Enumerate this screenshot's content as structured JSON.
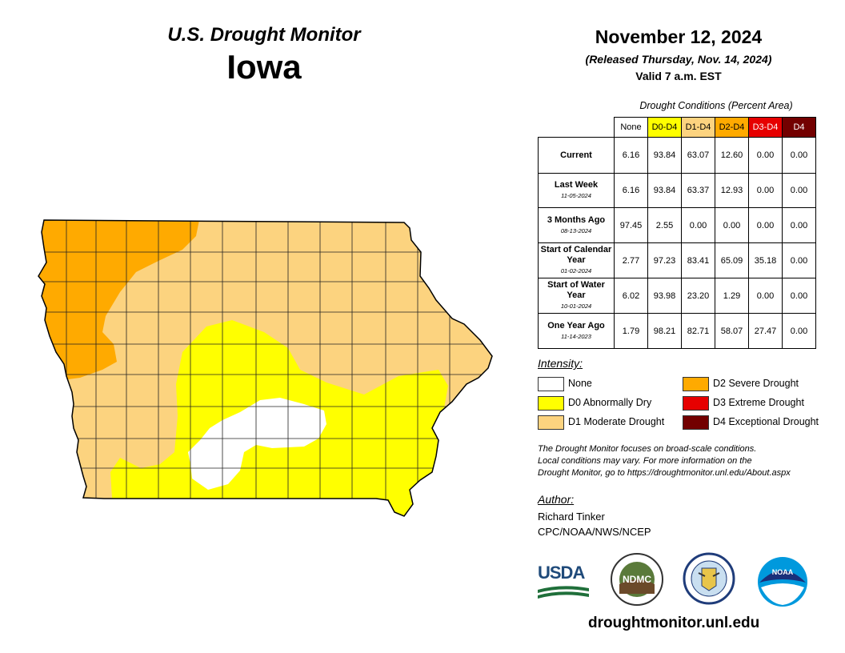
{
  "title": {
    "subtitle": "U.S. Drought Monitor",
    "state": "Iowa",
    "date": "November 12, 2024",
    "released": "(Released Thursday, Nov. 14, 2024)",
    "valid": "Valid 7 a.m. EST"
  },
  "table": {
    "caption": "Drought Conditions (Percent Area)",
    "headers": [
      "None",
      "D0-D4",
      "D1-D4",
      "D2-D4",
      "D3-D4",
      "D4"
    ],
    "header_colors": [
      "#ffffff",
      "#ffff00",
      "#fcd37f",
      "#ffaa00",
      "#e60000",
      "#730000"
    ],
    "header_text_colors": [
      "#000000",
      "#000000",
      "#000000",
      "#000000",
      "#ffffff",
      "#ffffff"
    ],
    "rows": [
      {
        "label": "Current",
        "sublabel": "",
        "values": [
          "6.16",
          "93.84",
          "63.07",
          "12.60",
          "0.00",
          "0.00"
        ]
      },
      {
        "label": "Last Week",
        "sublabel": "11-05-2024",
        "values": [
          "6.16",
          "93.84",
          "63.37",
          "12.93",
          "0.00",
          "0.00"
        ]
      },
      {
        "label": "3 Months Ago",
        "sublabel": "08-13-2024",
        "values": [
          "97.45",
          "2.55",
          "0.00",
          "0.00",
          "0.00",
          "0.00"
        ]
      },
      {
        "label": "Start of Calendar Year",
        "sublabel": "01-02-2024",
        "values": [
          "2.77",
          "97.23",
          "83.41",
          "65.09",
          "35.18",
          "0.00"
        ]
      },
      {
        "label": "Start of Water Year",
        "sublabel": "10-01-2024",
        "values": [
          "6.02",
          "93.98",
          "23.20",
          "1.29",
          "0.00",
          "0.00"
        ]
      },
      {
        "label": "One Year Ago",
        "sublabel": "11-14-2023",
        "values": [
          "1.79",
          "98.21",
          "82.71",
          "58.07",
          "27.47",
          "0.00"
        ]
      }
    ]
  },
  "legend": {
    "title": "Intensity:",
    "items": [
      {
        "label": "None",
        "color": "#ffffff"
      },
      {
        "label": "D0 Abnormally Dry",
        "color": "#ffff00"
      },
      {
        "label": "D1 Moderate Drought",
        "color": "#fcd37f"
      },
      {
        "label": "D2 Severe Drought",
        "color": "#ffaa00"
      },
      {
        "label": "D3 Extreme Drought",
        "color": "#e60000"
      },
      {
        "label": "D4 Exceptional Drought",
        "color": "#730000"
      }
    ]
  },
  "note": {
    "line1": "The Drought Monitor focuses on broad-scale conditions.",
    "line2": "Local conditions may vary. For more information on the",
    "line3": "Drought Monitor, go to https://droughtmonitor.unl.edu/About.aspx"
  },
  "author": {
    "title": "Author:",
    "name": "Richard Tinker",
    "org": "CPC/NOAA/NWS/NCEP"
  },
  "logos": {
    "usda": "USDA",
    "ndmc": "NDMC",
    "noaa": "NOAA"
  },
  "footer_url": "droughtmonitor.unl.edu"
}
